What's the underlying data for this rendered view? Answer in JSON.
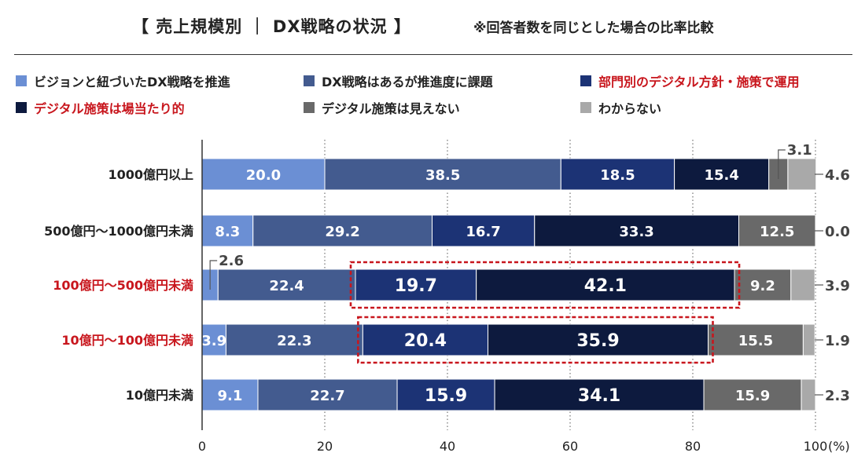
{
  "title": "【 売上規模別 ｜ DX戦略の状況 】",
  "subtitle": "※回答者数を同じとした場合の比率比較",
  "colors": {
    "s1": "#6b8fd4",
    "s2": "#435b8f",
    "s3": "#1c3375",
    "s4": "#0d1a3e",
    "s5": "#696969",
    "s6": "#a9a9a9",
    "highlight": "#c8161d",
    "axis": "#333333"
  },
  "legend": [
    {
      "label": "ビジョンと紐づいたDX戦略を推進",
      "color": "#6b8fd4",
      "highlight": false
    },
    {
      "label": "DX戦略はあるが推進度に課題",
      "color": "#435b8f",
      "highlight": false
    },
    {
      "label": "部門別のデジタル方針・施策で運用",
      "color": "#1c3375",
      "highlight": true
    },
    {
      "label": "デジタル施策は場当たり的",
      "color": "#0d1a3e",
      "highlight": true
    },
    {
      "label": "デジタル施策は見えない",
      "color": "#696969",
      "highlight": false
    },
    {
      "label": "わからない",
      "color": "#a9a9a9",
      "highlight": false
    }
  ],
  "chart_data": {
    "type": "bar",
    "orientation": "horizontal",
    "stacked": true,
    "categories": [
      "1000億円以上",
      "500億円～1000億円未満",
      "100億円～500億円未満",
      "10億円～100億円未満",
      "10億円未満"
    ],
    "category_highlight": [
      false,
      false,
      true,
      true,
      false
    ],
    "series": [
      {
        "name": "ビジョンと紐づいたDX戦略を推進",
        "values": [
          20.0,
          8.3,
          2.6,
          3.9,
          9.1
        ]
      },
      {
        "name": "DX戦略はあるが推進度に課題",
        "values": [
          38.5,
          29.2,
          22.4,
          22.3,
          22.7
        ]
      },
      {
        "name": "部門別のデジタル方針・施策で運用",
        "values": [
          18.5,
          16.7,
          19.7,
          20.4,
          15.9
        ]
      },
      {
        "name": "デジタル施策は場当たり的",
        "values": [
          15.4,
          33.3,
          42.1,
          35.9,
          34.1
        ]
      },
      {
        "name": "デジタル施策は見えない",
        "values": [
          3.1,
          12.5,
          9.2,
          15.5,
          15.9
        ]
      },
      {
        "name": "わからない",
        "values": [
          4.6,
          0.0,
          3.9,
          1.9,
          2.3
        ]
      }
    ],
    "labels": [
      [
        "20.0",
        "38.5",
        "18.5",
        "15.4",
        "3.1",
        "4.6"
      ],
      [
        "8.3",
        "29.2",
        "16.7",
        "33.3",
        "12.5",
        "0.0"
      ],
      [
        "2.6",
        "22.4",
        "19.7",
        "42.1",
        "9.2",
        "3.9"
      ],
      [
        "3.9",
        "22.3",
        "20.4",
        "35.9",
        "15.5",
        "1.9"
      ],
      [
        "9.1",
        "22.7",
        "15.9",
        "34.1",
        "15.9",
        "2.3"
      ]
    ],
    "xlim": [
      0,
      100
    ],
    "xticks": [
      0,
      20,
      40,
      60,
      80,
      100
    ],
    "xtick_labels": [
      "0",
      "20",
      "40",
      "60",
      "80",
      "100"
    ],
    "x_unit": "(%)",
    "grid": "vertical dotted",
    "highlight_boxes": [
      {
        "row": 2,
        "series_from": 2,
        "series_to": 3
      },
      {
        "row": 3,
        "series_from": 2,
        "series_to": 3
      }
    ]
  }
}
